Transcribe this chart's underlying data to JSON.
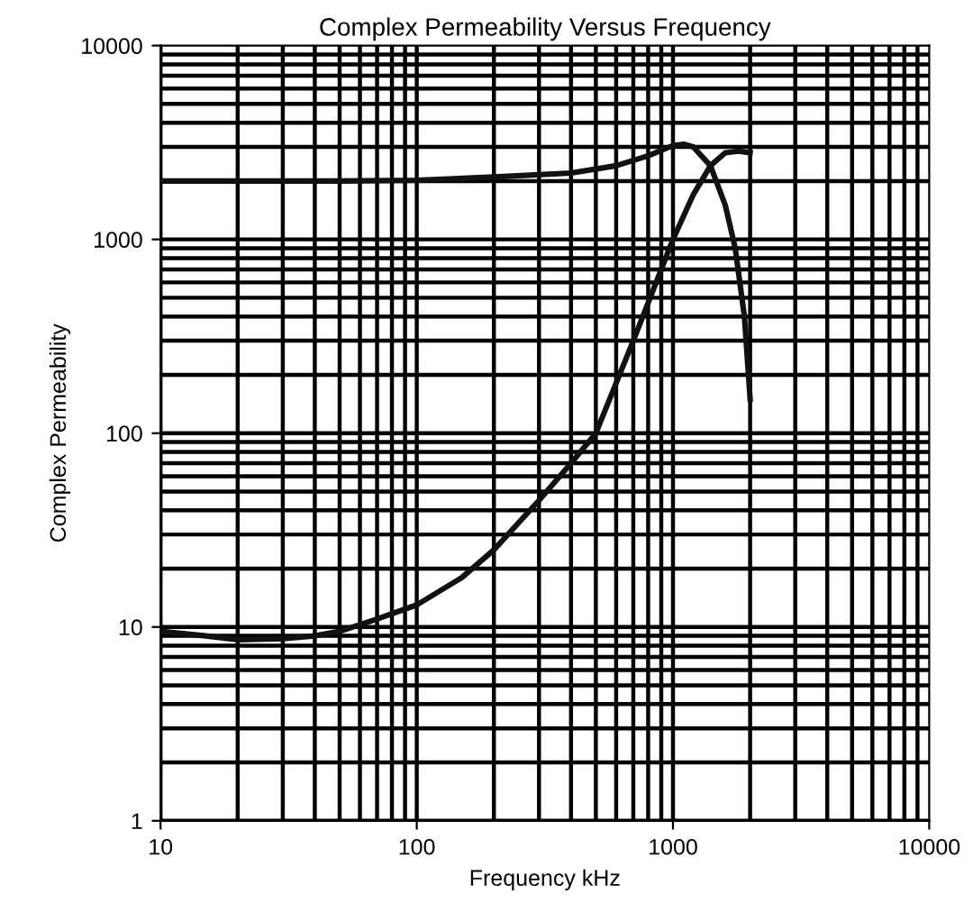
{
  "chart_data": {
    "type": "line",
    "title": "Complex Permeability Versus Frequency",
    "xlabel": "Frequency kHz",
    "ylabel": "Complex Permeability",
    "log": "xy",
    "grid": true,
    "xlim": [
      10,
      10000
    ],
    "ylim": [
      1,
      10000
    ],
    "xticks": [
      10,
      100,
      1000,
      10000
    ],
    "yticks": [
      1,
      10,
      100,
      1000,
      10000
    ],
    "series": [
      {
        "color": "#111111",
        "x": [
          10,
          50,
          100,
          200,
          400,
          600,
          800,
          1000,
          1100,
          1200,
          1400,
          1600,
          1750,
          1900,
          2000
        ],
        "values": [
          2000,
          2000,
          2020,
          2100,
          2200,
          2400,
          2700,
          3050,
          3100,
          3000,
          2400,
          1500,
          900,
          400,
          150
        ]
      },
      {
        "color": "#111111",
        "x": [
          10,
          15,
          20,
          30,
          40,
          50,
          70,
          100,
          150,
          200,
          300,
          400,
          500,
          700,
          1000,
          1200,
          1400,
          1600,
          1800,
          2000
        ],
        "values": [
          9.5,
          9,
          8.6,
          8.7,
          9,
          9.5,
          11,
          13,
          18,
          25,
          45,
          70,
          100,
          300,
          1000,
          1700,
          2400,
          2800,
          2850,
          2800
        ]
      }
    ]
  }
}
